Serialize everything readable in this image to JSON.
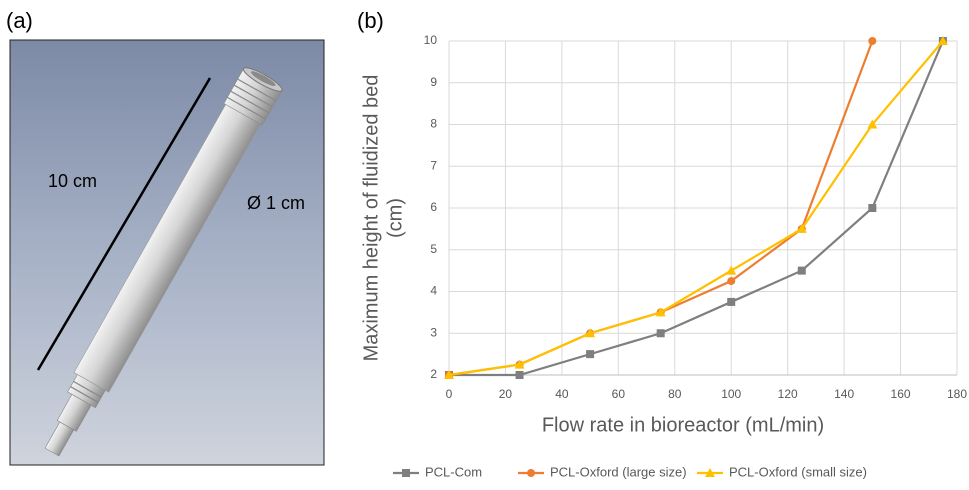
{
  "figure": {
    "panel_a_label": "(a)",
    "panel_b_label": "(b)",
    "length_label": "10 cm",
    "diameter_label": "Ø 1 cm"
  },
  "chart_data": {
    "type": "line",
    "xlabel": "Flow rate in bioreactor (mL/min)",
    "ylabel": [
      "Maximum height of fluidized bed",
      "(cm)"
    ],
    "x": [
      0,
      25,
      50,
      75,
      100,
      125,
      150,
      175
    ],
    "series": [
      {
        "name": "PCL-Com",
        "color": "#7f7f7f",
        "marker": "square",
        "values": [
          2,
          2,
          2.5,
          3,
          3.75,
          4.5,
          6,
          10
        ]
      },
      {
        "name": "PCL-Oxford (large size)",
        "color": "#ed7d31",
        "marker": "circle",
        "values": [
          2,
          2.25,
          3,
          3.5,
          4.25,
          5.5,
          10,
          null
        ]
      },
      {
        "name": "PCL-Oxford (small size)",
        "color": "#ffc000",
        "marker": "triangle",
        "values": [
          2,
          2.25,
          3,
          3.5,
          4.5,
          5.5,
          8,
          10
        ]
      }
    ],
    "xlim": [
      0,
      180
    ],
    "xticks": [
      0,
      20,
      40,
      60,
      80,
      100,
      120,
      140,
      160,
      180
    ],
    "ylim": [
      2,
      10
    ],
    "yticks": [
      2,
      3,
      4,
      5,
      6,
      7,
      8,
      9,
      10
    ],
    "grid": true,
    "legend": "bottom"
  }
}
